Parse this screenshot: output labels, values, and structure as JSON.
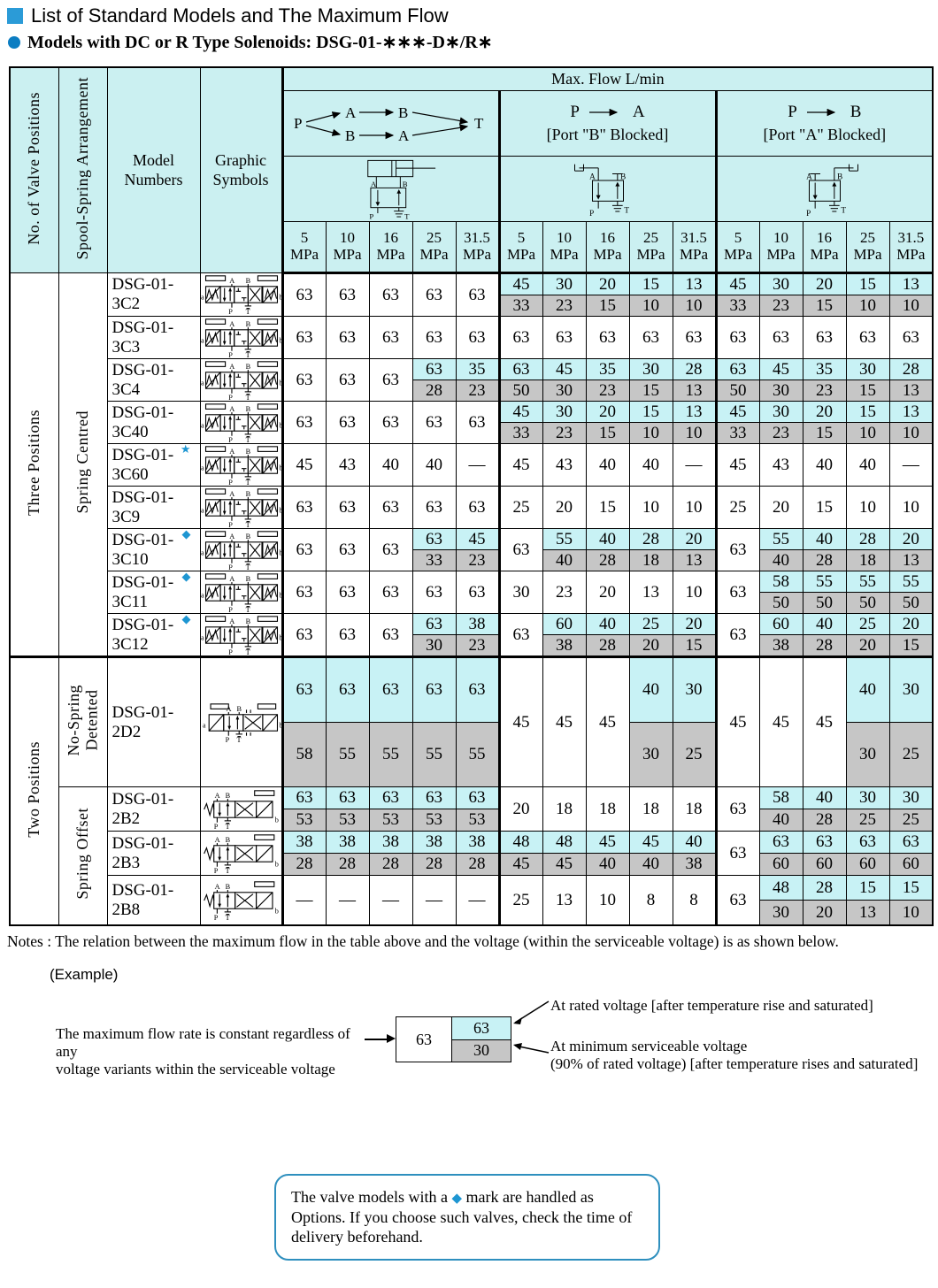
{
  "page": {
    "title": "List of Standard Models and The Maximum Flow",
    "subtitle": "Models with DC or R Type Solenoids: DSG-01-∗∗∗-D∗/R∗"
  },
  "colors": {
    "cell_cyan": "#c8f2f5",
    "cell_gray": "#c6c6c6",
    "header_bg": "#cbf0f1",
    "accent_blue": "#1e96d2",
    "title_square": "#2b9bd7",
    "bullet_circle": "#0b7dc2",
    "note_border": "#2e8fbe"
  },
  "table": {
    "headers": {
      "col1": "No. of Valve Positions",
      "col2": "Spool-Spring Arrangement",
      "col3": "Model Numbers",
      "col4": "Graphic Symbols",
      "maxflow": "Max. Flow  L/min",
      "pressures": [
        "5",
        "10",
        "16",
        "25",
        "31.5"
      ],
      "unit": "MPa",
      "flow_diagram_labels": {
        "P": "P",
        "A": "A",
        "B": "B",
        "T": "T"
      },
      "group2": {
        "from": "P",
        "to": "A",
        "subtitle": "[Port \"B\" Blocked]"
      },
      "group3": {
        "from": "P",
        "to": "B",
        "subtitle": "[Port \"A\" Blocked]"
      }
    },
    "port_labels": {
      "a": "a",
      "b": "b",
      "A": "A",
      "B": "B",
      "P": "P",
      "T": "T"
    },
    "sections": [
      {
        "position": "Three Positions",
        "arrangements": [
          {
            "label": "Spring Centred",
            "rows": 9
          }
        ]
      },
      {
        "position": "Two Positions",
        "arrangements": [
          {
            "label": "No-Spring\nDetented",
            "rows": 1
          },
          {
            "label": "Spring Offset",
            "rows": 3
          }
        ]
      }
    ],
    "marks": {
      "star": "★",
      "diamond": "◆"
    },
    "rows": [
      {
        "model": "DSG-01-3C2",
        "mark": null,
        "symbol": "3pos",
        "g1": [
          "63",
          "63",
          "63",
          "63",
          "63"
        ],
        "g2": [
          [
            "45",
            "33"
          ],
          [
            "30",
            "23"
          ],
          [
            "20",
            "15"
          ],
          [
            "15",
            "10"
          ],
          [
            "13",
            "10"
          ]
        ],
        "g3": [
          [
            "45",
            "33"
          ],
          [
            "30",
            "23"
          ],
          [
            "20",
            "15"
          ],
          [
            "15",
            "10"
          ],
          [
            "13",
            "10"
          ]
        ]
      },
      {
        "model": "DSG-01-3C3",
        "mark": null,
        "symbol": "3pos",
        "g1": [
          "63",
          "63",
          "63",
          "63",
          "63"
        ],
        "g2": [
          "63",
          "63",
          "63",
          "63",
          "63"
        ],
        "g3": [
          "63",
          "63",
          "63",
          "63",
          "63"
        ]
      },
      {
        "model": "DSG-01-3C4",
        "mark": null,
        "symbol": "3pos",
        "g1": [
          "63",
          "63",
          "63",
          [
            "63",
            "28"
          ],
          [
            "35",
            "23"
          ]
        ],
        "g2": [
          [
            "63",
            "50"
          ],
          [
            "45",
            "30"
          ],
          [
            "35",
            "23"
          ],
          [
            "30",
            "15"
          ],
          [
            "28",
            "13"
          ]
        ],
        "g3": [
          [
            "63",
            "50"
          ],
          [
            "45",
            "30"
          ],
          [
            "35",
            "23"
          ],
          [
            "30",
            "15"
          ],
          [
            "28",
            "13"
          ]
        ]
      },
      {
        "model": "DSG-01-3C40",
        "mark": null,
        "symbol": "3pos",
        "g1": [
          "63",
          "63",
          "63",
          "63",
          "63"
        ],
        "g2": [
          [
            "45",
            "33"
          ],
          [
            "30",
            "23"
          ],
          [
            "20",
            "15"
          ],
          [
            "15",
            "10"
          ],
          [
            "13",
            "10"
          ]
        ],
        "g3": [
          [
            "45",
            "33"
          ],
          [
            "30",
            "23"
          ],
          [
            "20",
            "15"
          ],
          [
            "15",
            "10"
          ],
          [
            "13",
            "10"
          ]
        ]
      },
      {
        "model": "DSG-01-3C60",
        "mark": "star",
        "symbol": "3pos",
        "g1": [
          "45",
          "43",
          "40",
          "40",
          "—"
        ],
        "g2": [
          "45",
          "43",
          "40",
          "40",
          "—"
        ],
        "g3": [
          "45",
          "43",
          "40",
          "40",
          "—"
        ]
      },
      {
        "model": "DSG-01-3C9",
        "mark": null,
        "symbol": "3pos",
        "g1": [
          "63",
          "63",
          "63",
          "63",
          "63"
        ],
        "g2": [
          "25",
          "20",
          "15",
          "10",
          "10"
        ],
        "g3": [
          "25",
          "20",
          "15",
          "10",
          "10"
        ]
      },
      {
        "model": "DSG-01-3C10",
        "mark": "diamond",
        "symbol": "3pos",
        "g1": [
          "63",
          "63",
          "63",
          [
            "63",
            "33"
          ],
          [
            "45",
            "23"
          ]
        ],
        "g2": [
          "63",
          [
            "55",
            "40"
          ],
          [
            "40",
            "28"
          ],
          [
            "28",
            "18"
          ],
          [
            "20",
            "13"
          ]
        ],
        "g3": [
          "63",
          [
            "55",
            "40"
          ],
          [
            "40",
            "28"
          ],
          [
            "28",
            "18"
          ],
          [
            "20",
            "13"
          ]
        ]
      },
      {
        "model": "DSG-01-3C11",
        "mark": "diamond",
        "symbol": "3pos",
        "g1": [
          "63",
          "63",
          "63",
          "63",
          "63"
        ],
        "g2": [
          "30",
          "23",
          "20",
          "13",
          "10"
        ],
        "g3": [
          "63",
          [
            "58",
            "50"
          ],
          [
            "55",
            "50"
          ],
          [
            "55",
            "50"
          ],
          [
            "55",
            "50"
          ]
        ]
      },
      {
        "model": "DSG-01-3C12",
        "mark": "diamond",
        "symbol": "3pos",
        "g1": [
          "63",
          "63",
          "63",
          [
            "63",
            "30"
          ],
          [
            "38",
            "23"
          ]
        ],
        "g2": [
          "63",
          [
            "60",
            "38"
          ],
          [
            "40",
            "28"
          ],
          [
            "25",
            "20"
          ],
          [
            "20",
            "15"
          ]
        ],
        "g3": [
          "63",
          [
            "60",
            "38"
          ],
          [
            "40",
            "28"
          ],
          [
            "25",
            "20"
          ],
          [
            "20",
            "15"
          ]
        ]
      },
      {
        "model": "DSG-01-2D2",
        "mark": null,
        "symbol": "2det",
        "g1": [
          [
            "63",
            "58"
          ],
          [
            "63",
            "55"
          ],
          [
            "63",
            "55"
          ],
          [
            "63",
            "55"
          ],
          [
            "63",
            "55"
          ]
        ],
        "g2": [
          "45",
          "45",
          "45",
          [
            "40",
            "30"
          ],
          [
            "30",
            "25"
          ]
        ],
        "g3": [
          "45",
          "45",
          "45",
          [
            "40",
            "30"
          ],
          [
            "30",
            "25"
          ]
        ]
      },
      {
        "model": "DSG-01-2B2",
        "mark": null,
        "symbol": "2off",
        "g1": [
          [
            "63",
            "53"
          ],
          [
            "63",
            "53"
          ],
          [
            "63",
            "53"
          ],
          [
            "63",
            "53"
          ],
          [
            "63",
            "53"
          ]
        ],
        "g2": [
          "20",
          "18",
          "18",
          "18",
          "18"
        ],
        "g3": [
          "63",
          [
            "58",
            "40"
          ],
          [
            "40",
            "28"
          ],
          [
            "30",
            "25"
          ],
          [
            "30",
            "25"
          ]
        ]
      },
      {
        "model": "DSG-01-2B3",
        "mark": null,
        "symbol": "2off",
        "g1": [
          [
            "38",
            "28"
          ],
          [
            "38",
            "28"
          ],
          [
            "38",
            "28"
          ],
          [
            "38",
            "28"
          ],
          [
            "38",
            "28"
          ]
        ],
        "g2": [
          [
            "48",
            "45"
          ],
          [
            "48",
            "45"
          ],
          [
            "45",
            "40"
          ],
          [
            "45",
            "40"
          ],
          [
            "40",
            "38"
          ]
        ],
        "g3": [
          "63",
          [
            "63",
            "60"
          ],
          [
            "63",
            "60"
          ],
          [
            "63",
            "60"
          ],
          [
            "63",
            "60"
          ]
        ]
      },
      {
        "model": "DSG-01-2B8",
        "mark": null,
        "symbol": "2off",
        "g1": [
          "—",
          "—",
          "—",
          "—",
          "—"
        ],
        "g2": [
          "25",
          "13",
          "10",
          "8",
          "8"
        ],
        "g3": [
          "63",
          [
            "48",
            "30"
          ],
          [
            "28",
            "20"
          ],
          [
            "15",
            "13"
          ],
          [
            "15",
            "10"
          ]
        ]
      }
    ]
  },
  "notes": {
    "line": "Notes : The relation between the maximum flow in the table above and the voltage (within the serviceable voltage) is as shown below.",
    "example_label": "(Example)",
    "desc_line1": "The maximum flow rate is constant regardless of any",
    "desc_line2": "voltage variants within the serviceable voltage",
    "box_left_value": "63",
    "box_top_value": "63",
    "box_bottom_value": "30",
    "callout_top": "At rated voltage [after temperature rise and saturated]",
    "callout_bottom_line1": "At minimum serviceable voltage",
    "callout_bottom_line2": "(90% of rated voltage) [after temperature rises and saturated]"
  },
  "note_box": {
    "text_before": "The valve models with a ",
    "mark": "◆",
    "text_after": " mark are handled as Options. If you choose such valves, check the time of delivery beforehand."
  }
}
